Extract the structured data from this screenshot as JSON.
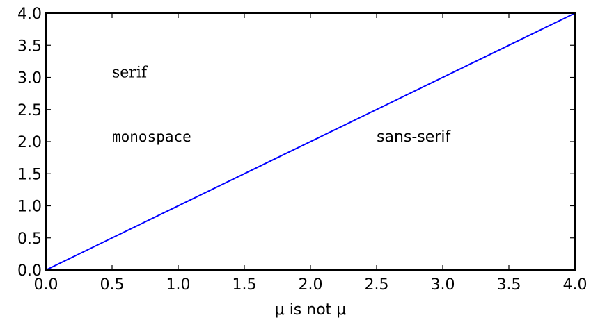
{
  "chart_data": {
    "type": "line",
    "title": "",
    "xlabel": "μ is not μ",
    "ylabel": "",
    "xlim": [
      0.0,
      4.0
    ],
    "ylim": [
      0.0,
      4.0
    ],
    "xticks": [
      "0.0",
      "0.5",
      "1.0",
      "1.5",
      "2.0",
      "2.5",
      "3.0",
      "3.5",
      "4.0"
    ],
    "yticks": [
      "0.0",
      "0.5",
      "1.0",
      "1.5",
      "2.0",
      "2.5",
      "3.0",
      "3.5",
      "4.0"
    ],
    "grid": false,
    "series": [
      {
        "x": [
          0.0,
          4.0
        ],
        "y": [
          0.0,
          4.0
        ],
        "color": "#0000ff"
      }
    ],
    "annotations": [
      {
        "text": "serif",
        "x": 0.5,
        "y": 3.0,
        "font": "serif"
      },
      {
        "text": "monospace",
        "x": 0.5,
        "y": 2.0,
        "font": "monospace"
      },
      {
        "text": "sans-serif",
        "x": 2.5,
        "y": 2.0,
        "font": "sans-serif"
      }
    ]
  }
}
